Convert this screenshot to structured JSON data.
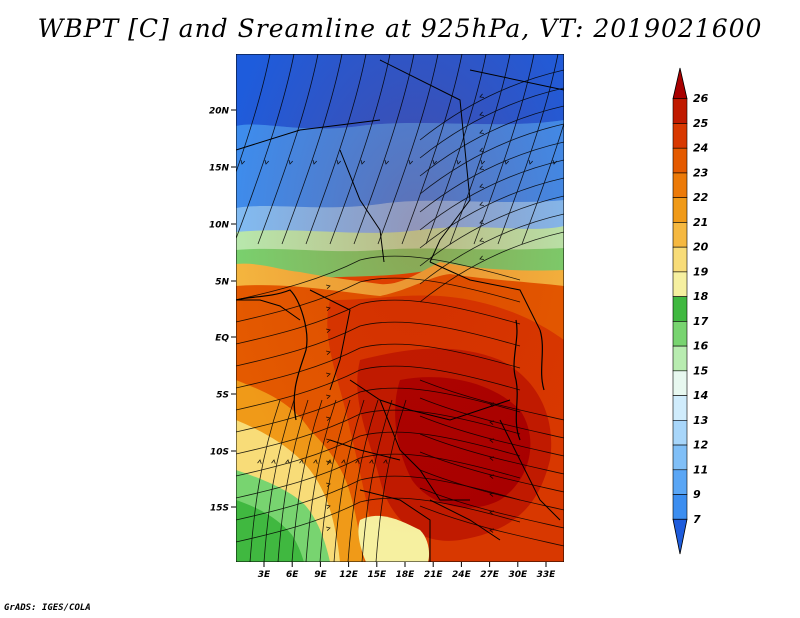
{
  "title": "WBPT [C] and Sreamline at 925hPa, VT: 2019021600",
  "footer": "GrADS: IGES/COLA",
  "map": {
    "lat_labels": [
      "20N",
      "15N",
      "10N",
      "5N",
      "EQ",
      "5S",
      "10S",
      "15S"
    ],
    "lon_labels": [
      "3E",
      "6E",
      "9E",
      "12E",
      "15E",
      "18E",
      "21E",
      "24E",
      "27E",
      "30E",
      "33E"
    ]
  },
  "colorbar": {
    "levels": [
      "7",
      "9",
      "11",
      "12",
      "13",
      "14",
      "15",
      "16",
      "17",
      "18",
      "19",
      "20",
      "21",
      "22",
      "23",
      "24",
      "25",
      "26"
    ],
    "colors": [
      "#1e5cdc",
      "#2b78e8",
      "#3c8ef0",
      "#5aa6f5",
      "#80bff7",
      "#a8d6fa",
      "#d0ecfc",
      "#e8f8f0",
      "#b8ecb0",
      "#78d470",
      "#40b840",
      "#f6f0a0",
      "#f8dc78",
      "#f5b840",
      "#f09a18",
      "#ec7a08",
      "#e45a00",
      "#d83800",
      "#c01a00",
      "#a80000"
    ]
  }
}
